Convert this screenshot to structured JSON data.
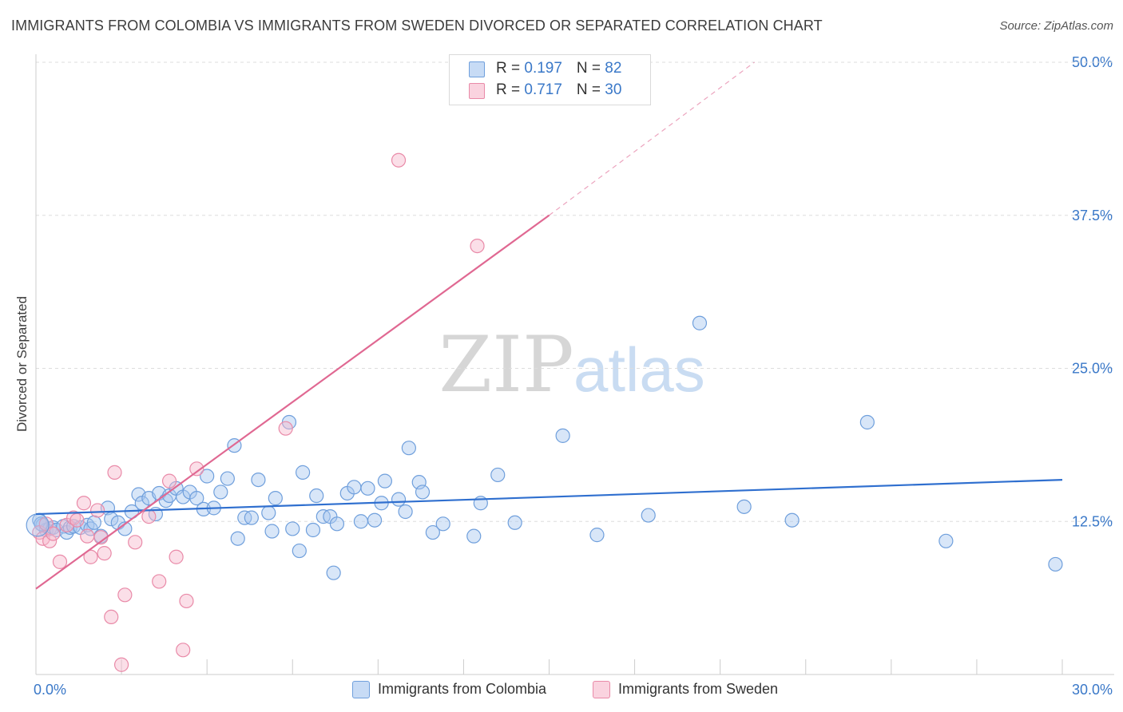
{
  "title": "IMMIGRANTS FROM COLOMBIA VS IMMIGRANTS FROM SWEDEN DIVORCED OR SEPARATED CORRELATION CHART",
  "source": "Source: ZipAtlas.com",
  "watermark": {
    "zip": "ZIP",
    "atlas": "atlas"
  },
  "legend": {
    "rows": [
      {
        "r_label": "R = ",
        "r_value": "0.197",
        "n_label": "N = ",
        "n_value": "82",
        "color": "#a9c8f0"
      },
      {
        "r_label": "R = ",
        "r_value": "0.717",
        "n_label": "N = ",
        "n_value": "30",
        "color": "#f6b9cc"
      }
    ]
  },
  "bottom_legend": [
    "Immigrants from Colombia",
    "Immigrants from Sweden"
  ],
  "colors": {
    "colombia_fill": "#a9c8f0",
    "colombia_stroke": "#6f9fdc",
    "colombia_line": "#2f6fcf",
    "sweden_fill": "#f6b9cc",
    "sweden_stroke": "#e98aa8",
    "sweden_line": "#e06892",
    "tick_label": "#3a78c8",
    "grid": "#dddddd"
  },
  "chart_data": {
    "type": "scatter",
    "title": "IMMIGRANTS FROM COLOMBIA VS IMMIGRANTS FROM SWEDEN DIVORCED OR SEPARATED CORRELATION CHART",
    "xlabel": "",
    "ylabel": "Divorced or Separated",
    "xlim": [
      0,
      30
    ],
    "ylim": [
      0,
      50
    ],
    "x_tick_labels": [
      "0.0%",
      "30.0%"
    ],
    "y_tick_labels": [
      "12.5%",
      "25.0%",
      "37.5%",
      "50.0%"
    ],
    "y_ticks": [
      12.5,
      25.0,
      37.5,
      50.0
    ],
    "grid": true,
    "legend_position": "top-center",
    "series": [
      {
        "name": "Immigrants from Colombia",
        "R": 0.197,
        "N": 82,
        "trend": [
          [
            0,
            13.1
          ],
          [
            30,
            15.9
          ]
        ],
        "points": [
          [
            0.1,
            12.6
          ],
          [
            0.2,
            12.2
          ],
          [
            0.3,
            11.8
          ],
          [
            0.4,
            11.9
          ],
          [
            0.5,
            12.0
          ],
          [
            0.6,
            11.8
          ],
          [
            0.8,
            12.1
          ],
          [
            0.9,
            11.6
          ],
          [
            1.0,
            12.0
          ],
          [
            1.1,
            12.1
          ],
          [
            1.3,
            12.0
          ],
          [
            1.5,
            12.2
          ],
          [
            1.6,
            11.9
          ],
          [
            1.7,
            12.4
          ],
          [
            1.9,
            11.3
          ],
          [
            2.1,
            13.6
          ],
          [
            2.2,
            12.7
          ],
          [
            2.4,
            12.4
          ],
          [
            2.6,
            11.9
          ],
          [
            2.8,
            13.3
          ],
          [
            3.0,
            14.7
          ],
          [
            3.1,
            14.0
          ],
          [
            3.3,
            14.4
          ],
          [
            3.5,
            13.1
          ],
          [
            3.6,
            14.8
          ],
          [
            3.8,
            14.2
          ],
          [
            3.9,
            14.6
          ],
          [
            4.1,
            15.2
          ],
          [
            4.3,
            14.5
          ],
          [
            4.5,
            14.9
          ],
          [
            4.7,
            14.4
          ],
          [
            4.9,
            13.5
          ],
          [
            5.0,
            16.2
          ],
          [
            5.2,
            13.6
          ],
          [
            5.4,
            14.9
          ],
          [
            5.6,
            16.0
          ],
          [
            5.8,
            18.7
          ],
          [
            5.9,
            11.1
          ],
          [
            6.1,
            12.8
          ],
          [
            6.3,
            12.8
          ],
          [
            6.5,
            15.9
          ],
          [
            6.8,
            13.2
          ],
          [
            6.9,
            11.7
          ],
          [
            7.0,
            14.4
          ],
          [
            7.5,
            11.9
          ],
          [
            7.4,
            20.6
          ],
          [
            7.7,
            10.1
          ],
          [
            7.8,
            16.5
          ],
          [
            8.1,
            11.8
          ],
          [
            8.2,
            14.6
          ],
          [
            8.4,
            12.9
          ],
          [
            8.6,
            12.9
          ],
          [
            8.7,
            8.3
          ],
          [
            8.8,
            12.3
          ],
          [
            9.1,
            14.8
          ],
          [
            9.3,
            15.3
          ],
          [
            9.5,
            12.5
          ],
          [
            9.7,
            15.2
          ],
          [
            9.9,
            12.6
          ],
          [
            10.1,
            14.0
          ],
          [
            10.2,
            15.8
          ],
          [
            10.6,
            14.3
          ],
          [
            10.8,
            13.3
          ],
          [
            10.9,
            18.5
          ],
          [
            11.2,
            15.7
          ],
          [
            11.3,
            14.9
          ],
          [
            11.6,
            11.6
          ],
          [
            11.9,
            12.3
          ],
          [
            12.8,
            11.3
          ],
          [
            13.0,
            14.0
          ],
          [
            13.5,
            16.3
          ],
          [
            14.0,
            12.4
          ],
          [
            15.4,
            19.5
          ],
          [
            16.4,
            11.4
          ],
          [
            17.9,
            13.0
          ],
          [
            19.4,
            28.7
          ],
          [
            20.7,
            13.7
          ],
          [
            22.1,
            12.6
          ],
          [
            24.3,
            20.6
          ],
          [
            26.6,
            10.9
          ],
          [
            29.8,
            9.0
          ],
          [
            0.15,
            12.3
          ]
        ]
      },
      {
        "name": "Immigrants from Sweden",
        "R": 0.717,
        "N": 30,
        "trend": [
          [
            0,
            7.0
          ],
          [
            15,
            37.5
          ]
        ],
        "trend_extension": [
          [
            15,
            37.5
          ],
          [
            21,
            50
          ]
        ],
        "points": [
          [
            0.1,
            11.6
          ],
          [
            0.2,
            11.1
          ],
          [
            0.3,
            12.3
          ],
          [
            0.4,
            10.9
          ],
          [
            0.5,
            11.5
          ],
          [
            0.7,
            9.2
          ],
          [
            0.9,
            12.2
          ],
          [
            1.1,
            12.8
          ],
          [
            1.2,
            12.6
          ],
          [
            1.4,
            14.0
          ],
          [
            1.5,
            11.3
          ],
          [
            1.6,
            9.6
          ],
          [
            1.8,
            13.4
          ],
          [
            1.9,
            11.2
          ],
          [
            2.0,
            9.9
          ],
          [
            2.2,
            4.7
          ],
          [
            2.3,
            16.5
          ],
          [
            2.5,
            0.8
          ],
          [
            2.6,
            6.5
          ],
          [
            2.9,
            10.8
          ],
          [
            3.3,
            12.9
          ],
          [
            3.6,
            7.6
          ],
          [
            3.9,
            15.8
          ],
          [
            4.1,
            9.6
          ],
          [
            4.3,
            2.0
          ],
          [
            4.4,
            6.0
          ],
          [
            4.7,
            16.8
          ],
          [
            7.3,
            20.1
          ],
          [
            10.6,
            42.0
          ],
          [
            12.9,
            35.0
          ]
        ]
      }
    ]
  }
}
